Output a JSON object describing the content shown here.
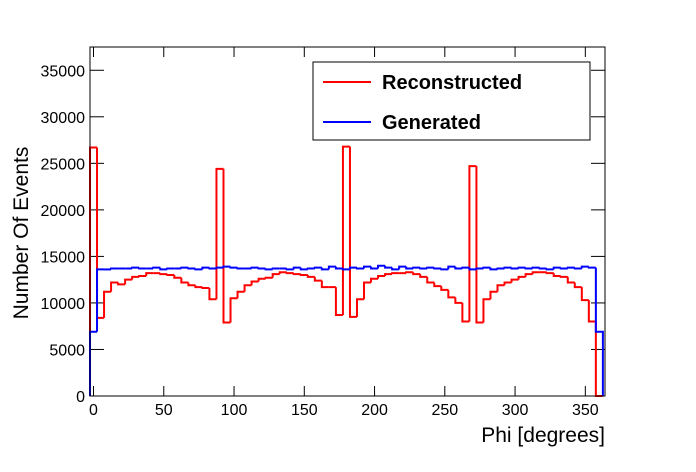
{
  "chart_data": {
    "type": "histogram",
    "xlabel": "Phi [degrees]",
    "ylabel": "Number Of Events",
    "bins": [
      -2.5,
      2.5,
      7.5,
      12.5,
      17.5,
      22.5,
      27.5,
      32.5,
      37.5,
      42.5,
      47.5,
      52.5,
      57.5,
      62.5,
      67.5,
      72.5,
      77.5,
      82.5,
      87.5,
      92.5,
      97.5,
      102.5,
      107.5,
      112.5,
      117.5,
      122.5,
      127.5,
      132.5,
      137.5,
      142.5,
      147.5,
      152.5,
      157.5,
      162.5,
      167.5,
      172.5,
      177.5,
      182.5,
      187.5,
      192.5,
      197.5,
      202.5,
      207.5,
      212.5,
      217.5,
      222.5,
      227.5,
      232.5,
      237.5,
      242.5,
      247.5,
      252.5,
      257.5,
      262.5,
      267.5,
      272.5,
      277.5,
      282.5,
      287.5,
      292.5,
      297.5,
      302.5,
      307.5,
      312.5,
      317.5,
      322.5,
      327.5,
      332.5,
      337.5,
      342.5,
      347.5,
      352.5,
      357.5,
      362.5
    ],
    "series": [
      {
        "name": "Reconstructed",
        "color": "#ff0000",
        "values": [
          26700,
          8400,
          11200,
          12200,
          12000,
          12500,
          12800,
          12900,
          13200,
          13200,
          13100,
          13000,
          12700,
          12200,
          11900,
          11700,
          11600,
          10400,
          24400,
          7900,
          10500,
          11200,
          11900,
          12300,
          12600,
          12700,
          13100,
          13300,
          13200,
          13100,
          13000,
          12800,
          12400,
          11700,
          11700,
          8700,
          26800,
          8500,
          10400,
          12200,
          12600,
          12900,
          13100,
          13200,
          13200,
          13300,
          13100,
          12800,
          12200,
          11800,
          11400,
          10600,
          10000,
          8000,
          24700,
          7900,
          10400,
          11200,
          11900,
          12200,
          12500,
          12800,
          13100,
          13300,
          13300,
          13200,
          12900,
          12800,
          12200,
          11700,
          10300,
          8000,
          0
        ]
      },
      {
        "name": "Generated",
        "color": "#0000ff",
        "values": [
          6900,
          13600,
          13600,
          13700,
          13700,
          13700,
          13800,
          13700,
          13700,
          13800,
          13600,
          13700,
          13700,
          13800,
          13700,
          13600,
          13800,
          13700,
          13800,
          13900,
          13800,
          13700,
          13700,
          13800,
          13700,
          13600,
          13700,
          13700,
          13600,
          13800,
          13600,
          13700,
          13800,
          13600,
          13900,
          13700,
          13600,
          13800,
          13700,
          13900,
          13700,
          14000,
          13800,
          13600,
          13900,
          13700,
          13800,
          13700,
          13800,
          13700,
          13600,
          13900,
          13700,
          13800,
          13600,
          13700,
          13800,
          13600,
          13700,
          13800,
          13700,
          13800,
          13700,
          13800,
          13700,
          13600,
          13800,
          13700,
          13800,
          13700,
          13900,
          13800,
          6900
        ]
      }
    ],
    "xlim": [
      -2.5,
      364
    ],
    "ylim": [
      0,
      37500
    ],
    "xticks": [
      0,
      50,
      100,
      150,
      200,
      250,
      300,
      350
    ],
    "yticks": [
      0,
      5000,
      10000,
      15000,
      20000,
      25000,
      30000,
      35000
    ],
    "legend": "top-right"
  }
}
